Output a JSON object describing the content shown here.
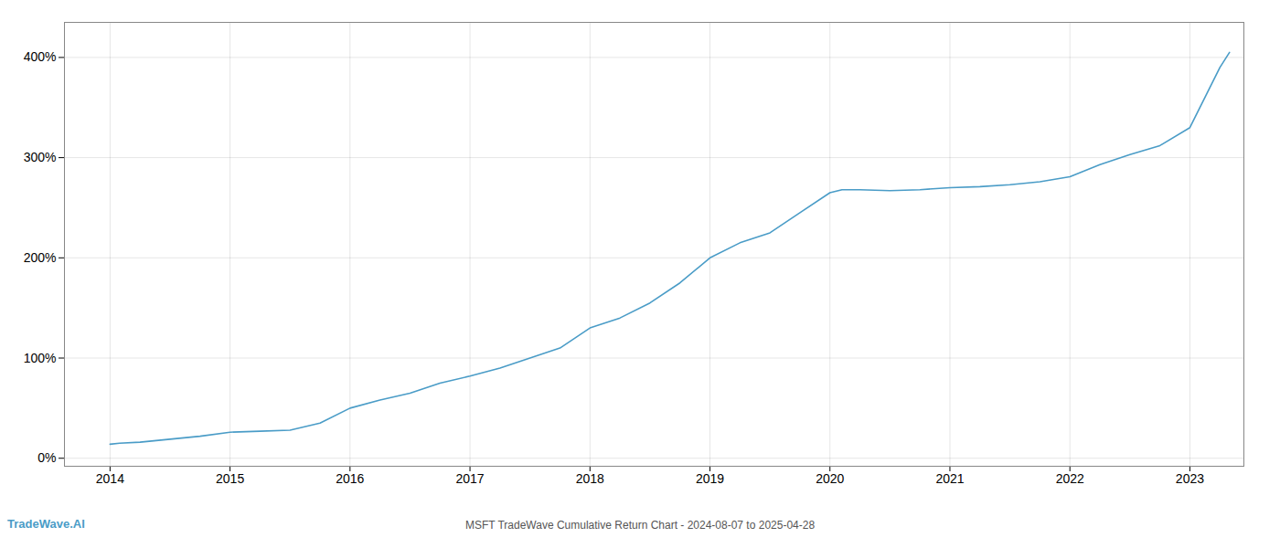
{
  "chart_data": {
    "type": "line",
    "title": "MSFT TradeWave Cumulative Return Chart - 2024-08-07 to 2025-04-28",
    "annotations": [
      {
        "text": "TradeWave.AI",
        "color": "#4a9cc7"
      }
    ],
    "color": "#4a9cc7",
    "grid": true,
    "x": [
      2014.0,
      2014.08,
      2014.25,
      2014.5,
      2014.75,
      2015.0,
      2015.25,
      2015.5,
      2015.75,
      2016.0,
      2016.25,
      2016.5,
      2016.75,
      2017.0,
      2017.25,
      2017.5,
      2017.75,
      2018.0,
      2018.25,
      2018.5,
      2018.75,
      2019.0,
      2019.25,
      2019.5,
      2019.75,
      2020.0,
      2020.1,
      2020.25,
      2020.5,
      2020.75,
      2021.0,
      2021.25,
      2021.5,
      2021.75,
      2022.0,
      2022.25,
      2022.5,
      2022.75,
      2023.0,
      2023.25,
      2023.33
    ],
    "values": [
      14,
      15,
      16,
      19,
      22,
      26,
      27,
      28,
      35,
      50,
      58,
      65,
      75,
      82,
      90,
      100,
      110,
      130,
      140,
      155,
      175,
      200,
      215,
      225,
      245,
      265,
      268,
      268,
      267,
      268,
      270,
      271,
      273,
      276,
      281,
      293,
      303,
      312,
      330,
      390,
      405
    ],
    "xlim": [
      2013.62,
      2023.45
    ],
    "xticks": [
      2014,
      2015,
      2016,
      2017,
      2018,
      2019,
      2020,
      2021,
      2022,
      2023
    ],
    "ylim": [
      -8,
      435
    ],
    "yticks": [
      {
        "value": 0,
        "label": "0%"
      },
      {
        "value": 100,
        "label": "100%"
      },
      {
        "value": 200,
        "label": "200%"
      },
      {
        "value": 300,
        "label": "300%"
      },
      {
        "value": 400,
        "label": "400%"
      }
    ]
  }
}
